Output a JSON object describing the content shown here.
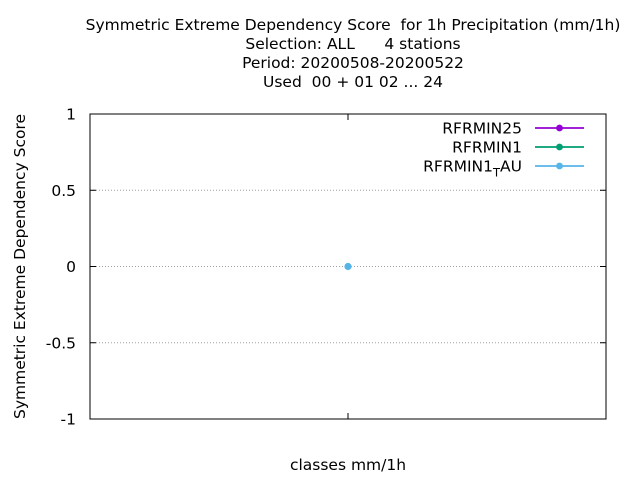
{
  "chart_data": {
    "type": "line",
    "title": "Symmetric Extreme Dependency Score  for 1h Precipitation (mm/1h)",
    "subtitle_lines": [
      "Selection: ALL      4 stations",
      "Period: 20200508-20200522",
      "Used  00 + 01 02 ... 24"
    ],
    "xlabel": "classes mm/1h",
    "ylabel": "Symmetric Extreme Dependency Score",
    "ylim": [
      -1,
      1
    ],
    "yticks": [
      "1",
      "0.5",
      "0",
      "-0.5",
      "-1"
    ],
    "ytick_values": [
      1,
      0.5,
      0,
      -0.5,
      -1
    ],
    "grid": true,
    "legend_position": "top-right",
    "series": [
      {
        "name": "RFRMIN25",
        "color": "#9400d3",
        "values": []
      },
      {
        "name": "RFRMIN1",
        "color": "#009e73",
        "values": []
      },
      {
        "name": "RFRMIN1_AU",
        "name_main": "RFRMIN1",
        "name_sub": "T",
        "name_rest": "AU",
        "color": "#56b4e9",
        "values": [
          0
        ]
      }
    ]
  }
}
